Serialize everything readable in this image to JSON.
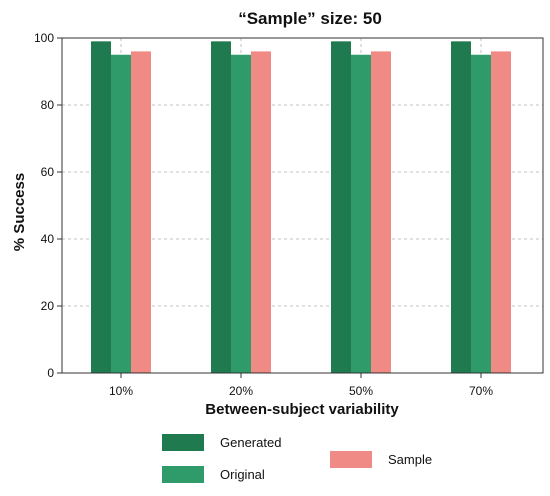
{
  "chart_data": {
    "type": "bar",
    "title": "“Sample” size: 50",
    "xlabel": "Between-subject variability",
    "ylabel": "% Success",
    "categories": [
      "10%",
      "20%",
      "50%",
      "70%"
    ],
    "series": [
      {
        "name": "Generated",
        "values": [
          99,
          99,
          99,
          99
        ],
        "color": "#1f7a4f"
      },
      {
        "name": "Original",
        "values": [
          95,
          95,
          95,
          95
        ],
        "color": "#2f9a6a"
      },
      {
        "name": "Sample",
        "values": [
          96,
          96,
          96,
          96
        ],
        "color": "#f08a84"
      }
    ],
    "ylim": [
      0,
      100
    ],
    "yticks": [
      0,
      20,
      40,
      60,
      80,
      100
    ],
    "grid": true,
    "legend_position": "bottom"
  }
}
